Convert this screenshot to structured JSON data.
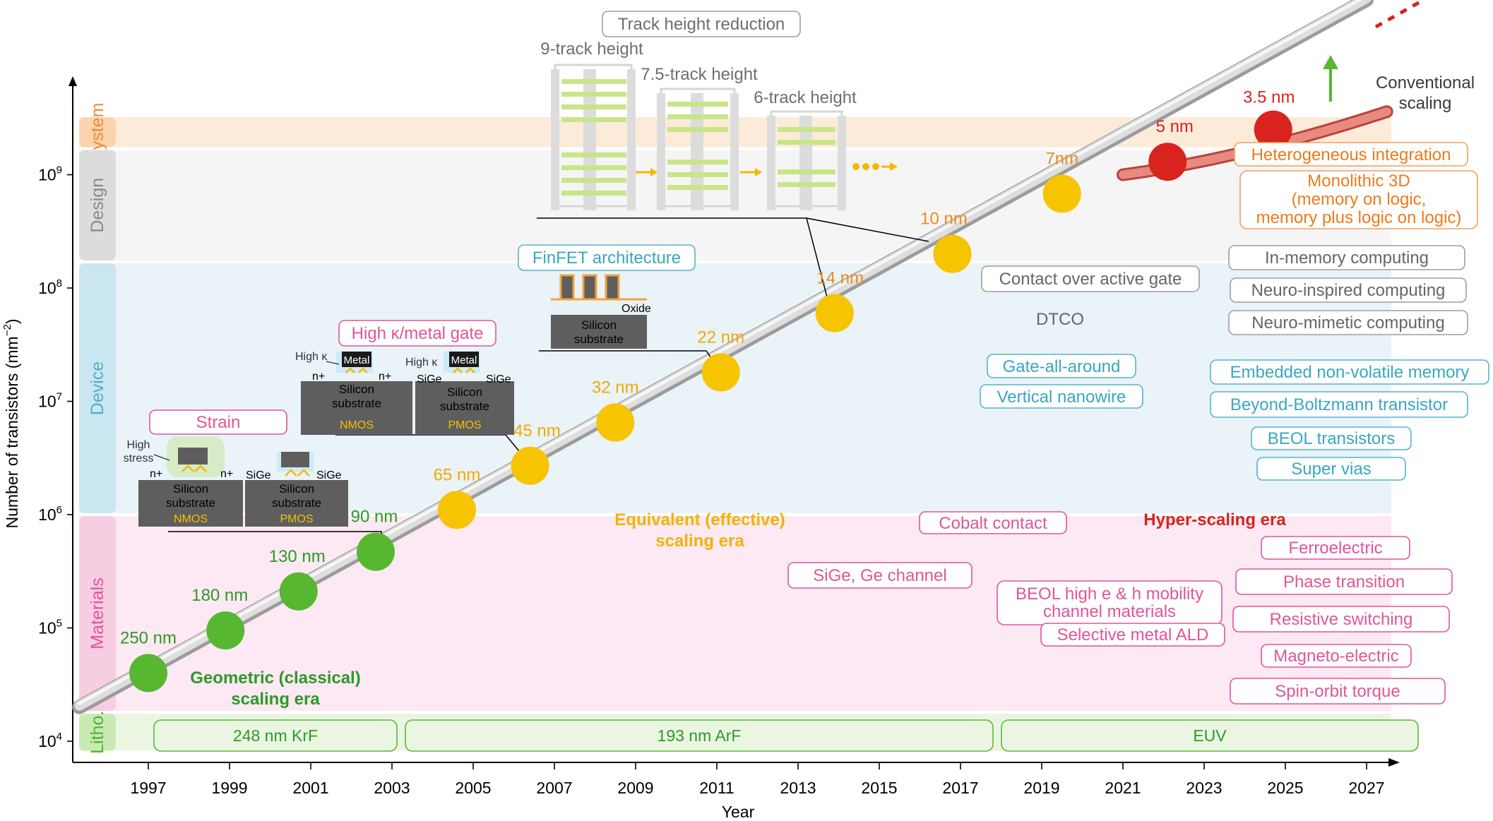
{
  "chart_data": {
    "type": "scatter",
    "y_scale": "log",
    "xlabel": "Year",
    "ylabel": "Number of transistors (mm",
    "ylabel_exp": "−2",
    "ylabel_close": ")",
    "ylim": [
      10000,
      50000000000
    ],
    "x_ticks": [
      "1997",
      "1999",
      "2001",
      "2003",
      "2005",
      "2007",
      "2009",
      "2011",
      "2013",
      "2015",
      "2017",
      "2019",
      "2021",
      "2023",
      "2025",
      "2027"
    ],
    "y_ticks": [
      {
        "value": 10000,
        "base": "10",
        "exp": "4"
      },
      {
        "value": 100000,
        "base": "10",
        "exp": "5"
      },
      {
        "value": 1000000,
        "base": "10",
        "exp": "6"
      },
      {
        "value": 10000000,
        "base": "10",
        "exp": "7"
      },
      {
        "value": 100000000,
        "base": "10",
        "exp": "8"
      },
      {
        "value": 1000000000,
        "base": "10",
        "exp": "9"
      }
    ],
    "bands": [
      {
        "label": "System",
        "from": 1700000000,
        "to": 50000000000,
        "fill": "#fdebd9",
        "tab": "#fbd3ad",
        "color": "#ee8a3c"
      },
      {
        "label": "Design",
        "from": 170000000,
        "to": 1700000000,
        "fill": "#f5f5f5",
        "tab": "#dcdcdc",
        "color": "#8a8a8a"
      },
      {
        "label": "Device",
        "from": 1000000,
        "to": 170000000,
        "fill": "#e9f3f8",
        "tab": "#c9e6f1",
        "color": "#4cb1c9"
      },
      {
        "label": "Materials",
        "from": 18000,
        "to": 1000000,
        "fill": "#fce9f3",
        "tab": "#f7cde2",
        "color": "#e0559a"
      },
      {
        "label": "Litho.",
        "from": 8000,
        "to": 18000,
        "fill": "#eaf6e2",
        "tab": "#c9e9b3",
        "color": "#4db431"
      }
    ],
    "trend_line": {
      "x": [
        1995.3,
        2027.0
      ],
      "y": [
        20000,
        35000000000
      ]
    },
    "conventional_line": {
      "x": [
        2021.0,
        2027.5
      ],
      "y": [
        1000000000,
        3600000000
      ]
    },
    "series": [
      {
        "name": "Geometric (classical) scaling era",
        "color": "#57b731",
        "label_color": "#2c9a25",
        "points": [
          {
            "label": "250 nm",
            "x": 1997.0,
            "y": 40000
          },
          {
            "label": "180 nm",
            "x": 1998.9,
            "y": 95000
          },
          {
            "label": "130 nm",
            "x": 2000.7,
            "y": 210000
          },
          {
            "label": "90 nm",
            "x": 2002.6,
            "y": 470000
          }
        ]
      },
      {
        "name": "Equivalent (effective) scaling era",
        "color": "#f6c400",
        "label_color": "#f2a900",
        "points": [
          {
            "label": "65 nm",
            "x": 2004.6,
            "y": 1100000
          },
          {
            "label": "45 nm",
            "x": 2006.4,
            "y": 2700000
          },
          {
            "label": "32 nm",
            "x": 2008.5,
            "y": 6500000
          },
          {
            "label": "22 nm",
            "x": 2011.1,
            "y": 18000000
          }
        ]
      },
      {
        "name": "",
        "color": "#f6c400",
        "label_color": "#ee8a1c",
        "points": [
          {
            "label": "14 nm",
            "x": 2013.9,
            "y": 60000000
          },
          {
            "label": "10 nm",
            "x": 2016.8,
            "y": 200000000
          },
          {
            "label": "7nm",
            "x": 2019.5,
            "y": 680000000
          }
        ]
      },
      {
        "name": "Hyper-scaling era",
        "color": "#d8231e",
        "label_color": "#d8231e",
        "points": [
          {
            "label": "5 nm",
            "x": 2022.1,
            "y": 1300000000
          },
          {
            "label": "3.5 nm",
            "x": 2024.7,
            "y": 2500000000
          }
        ]
      }
    ],
    "era_labels": [
      {
        "lines": [
          "Geometric (classical)",
          "scaling era"
        ],
        "color": "#2c9a25"
      },
      {
        "lines": [
          "Equivalent (effective)",
          "scaling era"
        ],
        "color": "#f2b200"
      },
      {
        "lines": [
          "Hyper-scaling era"
        ],
        "color": "#d8231e"
      }
    ],
    "conventional_label": [
      "Conventional",
      "scaling"
    ],
    "litho": [
      "248 nm KrF",
      "193 nm ArF",
      "EUV"
    ],
    "boxes": {
      "strain": "Strain",
      "high_k": "High κ/metal gate",
      "finfet": "FinFET architecture",
      "track": "Track height reduction",
      "heterogeneous": "Heterogeneous integration",
      "monolithic": [
        "Monolithic 3D",
        "(memory on logic,",
        "memory plus logic on logic)"
      ],
      "design_mid": [
        "Contact over active gate",
        "DTCO"
      ],
      "design_right": [
        "In-memory computing",
        "Neuro-inspired computing",
        "Neuro-mimetic computing"
      ],
      "device_mid": [
        "Gate-all-around",
        "Vertical nanowire"
      ],
      "device_right": [
        "Embedded non-volatile memory",
        "Beyond-Boltzmann transistor",
        "BEOL transistors",
        "Super vias"
      ],
      "materials_mid": [
        "Cobalt contact",
        "SiGe, Ge channel",
        "BEOL high e & h mobility",
        "channel materials",
        "Selective metal ALD"
      ],
      "materials_right": [
        "Ferroelectric",
        "Phase transition",
        "Resistive switching",
        "Magneto-electric",
        "Spin-orbit torque"
      ]
    },
    "insets": {
      "strain_high": "High",
      "strain_stress": "stress",
      "nplus": "n+",
      "sige": "SiGe",
      "silicon": "Silicon",
      "substrate": "substrate",
      "nmos": "NMOS",
      "pmos": "PMOS",
      "high_k": "High κ",
      "metal": "Metal",
      "oxide": "Oxide",
      "track_9": "9-track height",
      "track_75": "7.5-track height",
      "track_6": "6-track height"
    }
  }
}
